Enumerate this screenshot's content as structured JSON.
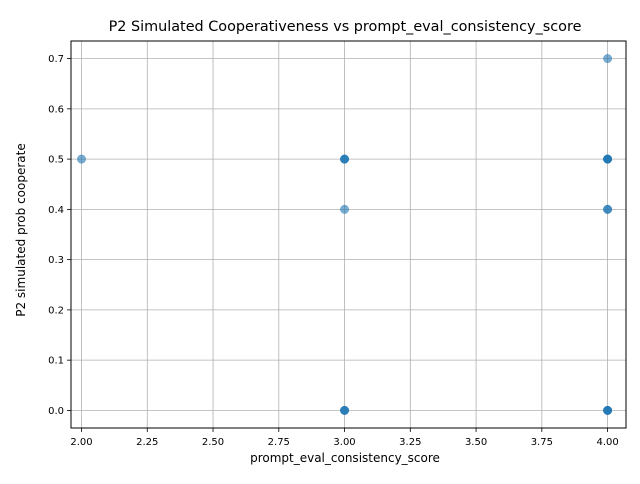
{
  "chart_data": {
    "type": "scatter",
    "title": "P2 Simulated Cooperativeness vs prompt_eval_consistency_score",
    "xlabel": "prompt_eval_consistency_score",
    "ylabel": "P2 simulated prob cooperate",
    "xlim": [
      1.96,
      4.07
    ],
    "ylim": [
      -0.035,
      0.735
    ],
    "xticks": [
      2.0,
      2.25,
      2.5,
      2.75,
      3.0,
      3.25,
      3.5,
      3.75,
      4.0
    ],
    "xtick_labels": [
      "2.00",
      "2.25",
      "2.50",
      "2.75",
      "3.00",
      "3.25",
      "3.50",
      "3.75",
      "4.00"
    ],
    "yticks": [
      0.0,
      0.1,
      0.2,
      0.3,
      0.4,
      0.5,
      0.6,
      0.7
    ],
    "ytick_labels": [
      "0.0",
      "0.1",
      "0.2",
      "0.3",
      "0.4",
      "0.5",
      "0.6",
      "0.7"
    ],
    "grid": true,
    "point_color": "#1f77b4",
    "point_alpha": 0.6,
    "points": [
      {
        "x": 2.0,
        "y": 0.5
      },
      {
        "x": 3.0,
        "y": 0.5
      },
      {
        "x": 3.0,
        "y": 0.5
      },
      {
        "x": 3.0,
        "y": 0.5
      },
      {
        "x": 3.0,
        "y": 0.4
      },
      {
        "x": 3.0,
        "y": 0.0
      },
      {
        "x": 3.0,
        "y": 0.0
      },
      {
        "x": 3.0,
        "y": 0.0
      },
      {
        "x": 4.0,
        "y": 0.7
      },
      {
        "x": 4.0,
        "y": 0.5
      },
      {
        "x": 4.0,
        "y": 0.5
      },
      {
        "x": 4.0,
        "y": 0.5
      },
      {
        "x": 4.0,
        "y": 0.5
      },
      {
        "x": 4.0,
        "y": 0.4
      },
      {
        "x": 4.0,
        "y": 0.4
      },
      {
        "x": 4.0,
        "y": 0.0
      },
      {
        "x": 4.0,
        "y": 0.0
      },
      {
        "x": 4.0,
        "y": 0.0
      },
      {
        "x": 4.0,
        "y": 0.0
      }
    ]
  }
}
